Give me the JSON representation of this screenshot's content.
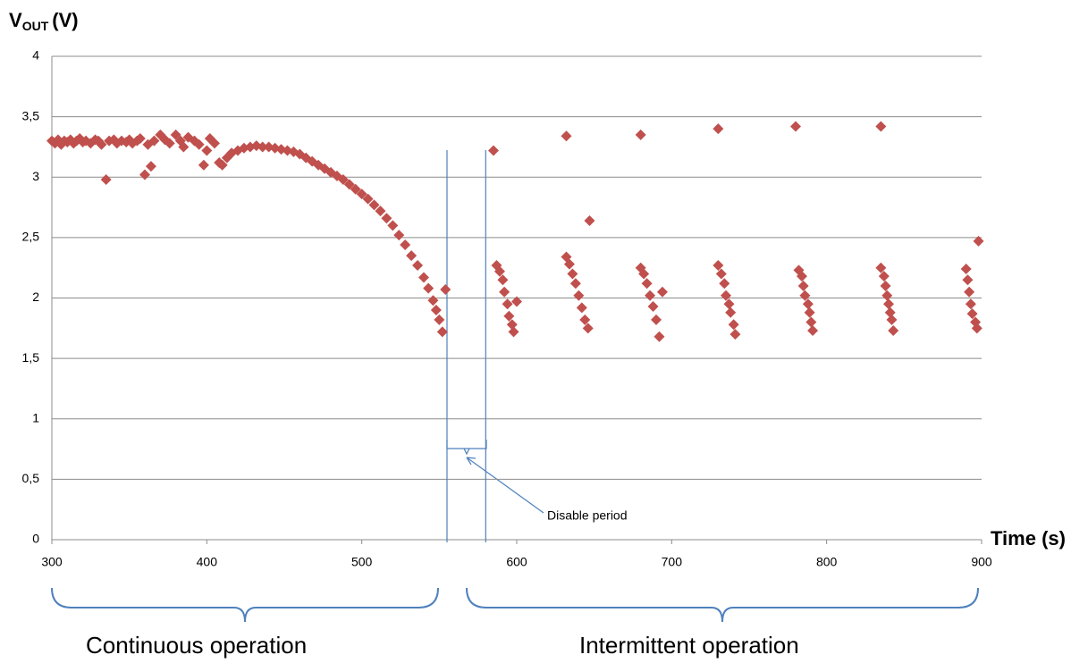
{
  "chart_data": {
    "type": "scatter",
    "y_label": {
      "main": "V",
      "sub": "OUT",
      "unit": "(V)"
    },
    "x_label": "Time (s)",
    "annotations": {
      "disable": "Disable period",
      "continuous": "Continuous operation",
      "intermittent": "Intermittent operation"
    },
    "disable_period": [
      555,
      580
    ],
    "color": "#c0504d",
    "grid": true,
    "xlim": [
      300,
      900
    ],
    "xticks": [
      300,
      400,
      500,
      600,
      700,
      800,
      900
    ],
    "ylim": [
      0,
      4
    ],
    "yticks": [
      0,
      {
        "value": 0.5,
        "label": "0,5"
      },
      1,
      {
        "value": 1.5,
        "label": "1,5"
      },
      2,
      {
        "value": 2.5,
        "label": "2,5"
      },
      3,
      {
        "value": 3.5,
        "label": "3,5"
      },
      4
    ],
    "x": [
      300,
      302,
      304,
      306,
      308,
      310,
      312,
      314,
      316,
      318,
      320,
      322,
      325,
      328,
      330,
      332,
      335,
      337,
      340,
      342,
      345,
      348,
      350,
      352,
      355,
      357,
      360,
      362,
      364,
      366,
      370,
      373,
      376,
      380,
      383,
      385,
      388,
      392,
      395,
      398,
      400,
      402,
      405,
      408,
      410,
      413,
      416,
      420,
      424,
      428,
      432,
      436,
      440,
      444,
      448,
      452,
      456,
      460,
      464,
      468,
      472,
      476,
      480,
      484,
      488,
      492,
      496,
      500,
      504,
      508,
      512,
      516,
      520,
      524,
      528,
      532,
      536,
      540,
      543,
      546,
      548,
      550,
      552,
      554,
      585,
      587,
      589,
      591,
      592,
      594,
      595,
      597,
      598,
      600,
      632,
      632,
      634,
      636,
      638,
      640,
      642,
      644,
      646,
      647,
      680,
      680,
      682,
      684,
      686,
      688,
      690,
      692,
      694,
      730,
      730,
      732,
      734,
      735,
      737,
      738,
      740,
      741,
      780,
      782,
      784,
      785,
      786,
      788,
      789,
      790,
      791,
      835,
      835,
      837,
      838,
      839,
      840,
      841,
      842,
      843,
      890,
      891,
      892,
      893,
      894,
      896,
      897,
      898
    ],
    "values": [
      3.3,
      3.28,
      3.31,
      3.27,
      3.3,
      3.29,
      3.31,
      3.28,
      3.3,
      3.32,
      3.29,
      3.3,
      3.28,
      3.31,
      3.3,
      3.27,
      2.98,
      3.3,
      3.31,
      3.28,
      3.3,
      3.29,
      3.31,
      3.28,
      3.3,
      3.32,
      3.02,
      3.27,
      3.09,
      3.3,
      3.35,
      3.31,
      3.28,
      3.35,
      3.3,
      3.25,
      3.33,
      3.3,
      3.27,
      3.1,
      3.22,
      3.32,
      3.28,
      3.12,
      3.1,
      3.16,
      3.2,
      3.22,
      3.24,
      3.25,
      3.26,
      3.25,
      3.25,
      3.24,
      3.23,
      3.22,
      3.21,
      3.19,
      3.16,
      3.13,
      3.1,
      3.07,
      3.04,
      3.01,
      2.98,
      2.94,
      2.9,
      2.86,
      2.82,
      2.77,
      2.72,
      2.66,
      2.6,
      2.52,
      2.44,
      2.35,
      2.27,
      2.17,
      2.08,
      1.98,
      1.9,
      1.82,
      1.72,
      2.07,
      3.22,
      2.27,
      2.22,
      2.15,
      2.05,
      1.95,
      1.85,
      1.78,
      1.72,
      1.97,
      3.34,
      2.34,
      2.28,
      2.2,
      2.12,
      2.02,
      1.92,
      1.82,
      1.75,
      2.64,
      3.35,
      2.25,
      2.2,
      2.12,
      2.02,
      1.93,
      1.82,
      1.68,
      2.05,
      3.4,
      2.27,
      2.2,
      2.12,
      2.02,
      1.95,
      1.88,
      1.78,
      1.7,
      3.42,
      2.23,
      2.18,
      2.1,
      2.02,
      1.95,
      1.88,
      1.8,
      1.73,
      3.42,
      2.25,
      2.18,
      2.1,
      2.02,
      1.95,
      1.88,
      1.82,
      1.73,
      2.24,
      2.15,
      2.05,
      1.95,
      1.87,
      1.8,
      1.75,
      2.47
    ]
  }
}
